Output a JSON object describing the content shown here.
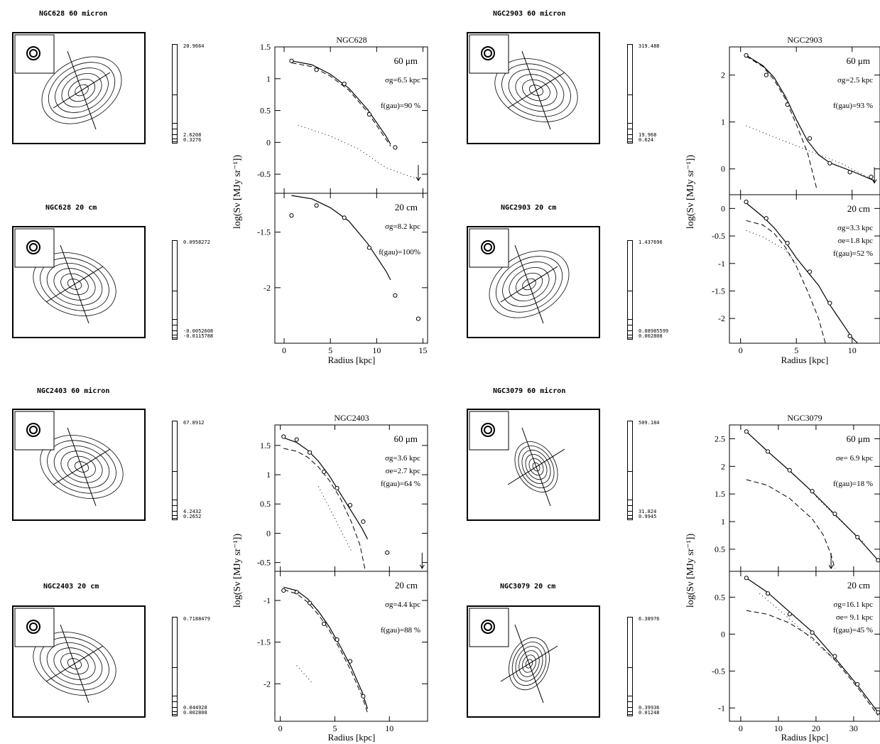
{
  "maps": [
    {
      "id": "ngc628-60",
      "label": "NGC628   60 micron",
      "bar_top": "20.9664",
      "bar_low": [
        "2.6208",
        "0.3276"
      ]
    },
    {
      "id": "ngc628-20",
      "label": "NGC628   20 cm",
      "bar_top": "0.0958272",
      "bar_low": [
        "-0.0052608",
        "-0.0115788"
      ]
    },
    {
      "id": "ngc2903-60",
      "label": "NGC2903   60 micron",
      "bar_top": "319.488",
      "bar_low": [
        "19.968",
        "0.624"
      ]
    },
    {
      "id": "ngc2903-20",
      "label": "NGC2903   20 cm",
      "bar_top": "1.437696",
      "bar_low": [
        "0.08985599",
        "0.002808"
      ]
    },
    {
      "id": "ngc2403-60",
      "label": "NGC2403   60 micron",
      "bar_top": "67.8912",
      "bar_low": [
        "4.2432",
        "0.2652"
      ]
    },
    {
      "id": "ngc2403-20",
      "label": "NGC2403   20 cm",
      "bar_top": "0.7188479",
      "bar_low": [
        "0.044928",
        "0.002808"
      ]
    },
    {
      "id": "ngc3079-60",
      "label": "NGC3079   60 micron",
      "bar_top": "509.184",
      "bar_low": [
        "31.824",
        "0.9945"
      ]
    },
    {
      "id": "ngc3079-20",
      "label": "NGC3079   20 cm",
      "bar_top": "6.38976",
      "bar_low": [
        "0.39936",
        "0.01248"
      ]
    }
  ],
  "chart_data": [
    {
      "type": "line",
      "title": "NGC628",
      "xlabel": "Radius [kpc]",
      "ylabel": "log(Sν [MJy sr⁻¹])",
      "xlim": [
        -1,
        15.5
      ],
      "xticks": [
        0,
        5,
        10,
        15
      ],
      "top": {
        "band": "60 μm",
        "params": [
          "σg=6.5 kpc",
          "f(gau)=90 %"
        ],
        "ylim": [
          -0.8,
          1.5
        ],
        "yticks": [
          -0.5,
          0,
          0.5,
          1,
          1.5
        ],
        "points": [
          [
            0.8,
            1.28
          ],
          [
            3.5,
            1.14
          ],
          [
            6.5,
            0.92
          ],
          [
            9.2,
            0.44
          ],
          [
            12,
            -0.08
          ]
        ],
        "solid": [
          [
            0.8,
            1.28
          ],
          [
            3,
            1.22
          ],
          [
            5,
            1.07
          ],
          [
            7,
            0.85
          ],
          [
            9,
            0.52
          ],
          [
            11,
            0.1
          ],
          [
            11.5,
            -0.03
          ]
        ],
        "dashed": [
          [
            0.8,
            1.25
          ],
          [
            3,
            1.19
          ],
          [
            5,
            1.04
          ],
          [
            7,
            0.82
          ],
          [
            9,
            0.48
          ],
          [
            11,
            0.05
          ],
          [
            11.5,
            -0.06
          ]
        ],
        "dotted": [
          [
            1.5,
            0.27
          ],
          [
            5,
            0.1
          ],
          [
            8,
            -0.1
          ],
          [
            11,
            -0.4
          ],
          [
            14.5,
            -0.58
          ]
        ],
        "arrows": [
          [
            14.5,
            -0.6
          ]
        ]
      },
      "bottom": {
        "band": "20 cm",
        "params": [
          "σg=8.2 kpc",
          "f(gau)=100%"
        ],
        "ylim": [
          -2.5,
          -1.15
        ],
        "yticks": [
          -1.5,
          -2
        ],
        "points": [
          [
            0.8,
            -1.35
          ],
          [
            3.5,
            -1.26
          ],
          [
            6.5,
            -1.37
          ],
          [
            9.2,
            -1.64
          ],
          [
            12,
            -2.07
          ],
          [
            14.5,
            -2.28
          ]
        ],
        "solid": [
          [
            0.8,
            -1.17
          ],
          [
            3,
            -1.2
          ],
          [
            5,
            -1.28
          ],
          [
            7,
            -1.4
          ],
          [
            9,
            -1.6
          ],
          [
            11,
            -1.85
          ],
          [
            11.5,
            -1.93
          ]
        ],
        "dashed": [],
        "dotted": [],
        "arrows": []
      }
    },
    {
      "type": "line",
      "title": "NGC2903",
      "xlabel": "Radius [kpc]",
      "ylabel": "log(Sν [MJy sr⁻¹])",
      "xlim": [
        -1,
        12.5
      ],
      "xticks": [
        0,
        5,
        10
      ],
      "top": {
        "band": "60 μm",
        "params": [
          "σg=2.5 kpc",
          "f(gau)=93 %"
        ],
        "ylim": [
          -0.55,
          2.6
        ],
        "yticks": [
          0,
          1,
          2
        ],
        "points": [
          [
            0.5,
            2.42
          ],
          [
            2.3,
            2.0
          ],
          [
            4.2,
            1.37
          ],
          [
            6.2,
            0.65
          ],
          [
            8,
            0.12
          ],
          [
            9.8,
            -0.07
          ],
          [
            11.7,
            -0.17
          ]
        ],
        "solid": [
          [
            0.5,
            2.42
          ],
          [
            2,
            2.2
          ],
          [
            3,
            1.95
          ],
          [
            4,
            1.55
          ],
          [
            5,
            1.05
          ],
          [
            6,
            0.6
          ],
          [
            7,
            0.3
          ],
          [
            8,
            0.13
          ],
          [
            10,
            -0.05
          ],
          [
            12,
            -0.25
          ]
        ],
        "dashed": [
          [
            0.5,
            2.4
          ],
          [
            2,
            2.18
          ],
          [
            3,
            1.9
          ],
          [
            4,
            1.5
          ],
          [
            5,
            0.95
          ],
          [
            6,
            0.35
          ],
          [
            6.8,
            -0.4
          ]
        ],
        "dotted": [
          [
            0.5,
            0.92
          ],
          [
            3,
            0.68
          ],
          [
            6,
            0.4
          ],
          [
            9,
            0.12
          ],
          [
            12,
            -0.25
          ]
        ],
        "arrows": [
          [
            12,
            -0.3
          ]
        ]
      },
      "bottom": {
        "band": "20 cm",
        "params": [
          "σg=3.3 kpc",
          "σe=1.8 kpc",
          "f(gau)=52 %"
        ],
        "ylim": [
          -2.45,
          0.25
        ],
        "yticks": [
          0,
          -0.5,
          -1,
          -1.5,
          -2
        ],
        "points": [
          [
            0.5,
            0.12
          ],
          [
            2.3,
            -0.18
          ],
          [
            4.2,
            -0.63
          ],
          [
            6.2,
            -1.15
          ],
          [
            8,
            -1.72
          ],
          [
            9.8,
            -2.32
          ]
        ],
        "solid": [
          [
            0.5,
            0.1
          ],
          [
            2,
            -0.15
          ],
          [
            3,
            -0.35
          ],
          [
            4,
            -0.6
          ],
          [
            5,
            -0.9
          ],
          [
            6,
            -1.15
          ],
          [
            7,
            -1.4
          ],
          [
            8,
            -1.75
          ],
          [
            9,
            -2.05
          ],
          [
            10,
            -2.35
          ],
          [
            10.5,
            -2.45
          ]
        ],
        "dashed": [
          [
            0.5,
            -0.22
          ],
          [
            2,
            -0.3
          ],
          [
            3,
            -0.45
          ],
          [
            4,
            -0.7
          ],
          [
            5,
            -1.05
          ],
          [
            6,
            -1.5
          ],
          [
            7,
            -2.0
          ],
          [
            7.6,
            -2.45
          ]
        ],
        "dotted": [
          [
            0.5,
            -0.4
          ],
          [
            2,
            -0.52
          ],
          [
            4,
            -0.75
          ],
          [
            5,
            -1.0
          ]
        ],
        "arrows": []
      }
    },
    {
      "type": "line",
      "title": "NGC2403",
      "xlabel": "Radius [kpc]",
      "ylabel": "log(Sν [MJy sr⁻¹])",
      "xlim": [
        -0.5,
        13.5
      ],
      "xticks": [
        0,
        5,
        10
      ],
      "top": {
        "band": "60 μm",
        "params": [
          "σg=3.6 kpc",
          "σe=2.7 kpc",
          "f(gau)=64 %"
        ],
        "ylim": [
          -0.65,
          1.85
        ],
        "yticks": [
          -0.5,
          0,
          0.5,
          1,
          1.5
        ],
        "points": [
          [
            0.3,
            1.65
          ],
          [
            1.5,
            1.6
          ],
          [
            2.7,
            1.38
          ],
          [
            4,
            1.05
          ],
          [
            5.2,
            0.77
          ],
          [
            6.4,
            0.48
          ],
          [
            7.6,
            0.2
          ],
          [
            9.8,
            -0.33
          ]
        ],
        "solid": [
          [
            0.3,
            1.63
          ],
          [
            1.5,
            1.55
          ],
          [
            2.5,
            1.42
          ],
          [
            3.5,
            1.23
          ],
          [
            4.5,
            0.98
          ],
          [
            5.5,
            0.68
          ],
          [
            6.5,
            0.38
          ],
          [
            7.5,
            0.08
          ],
          [
            8,
            -0.1
          ]
        ],
        "dashed": [
          [
            0.3,
            1.45
          ],
          [
            1.5,
            1.4
          ],
          [
            2.5,
            1.3
          ],
          [
            3.5,
            1.13
          ],
          [
            4.5,
            0.9
          ],
          [
            5.5,
            0.6
          ],
          [
            6.5,
            0.2
          ],
          [
            7.3,
            -0.2
          ],
          [
            7.8,
            -0.65
          ]
        ],
        "dotted": [
          [
            3.5,
            0.8
          ],
          [
            5,
            0.25
          ],
          [
            6.5,
            -0.3
          ]
        ],
        "arrows": [
          [
            13,
            -0.6
          ]
        ]
      },
      "bottom": {
        "band": "20 cm",
        "params": [
          "σg=4.4 kpc",
          "f(gau)=88 %"
        ],
        "ylim": [
          -2.45,
          -0.65
        ],
        "yticks": [
          -1,
          -1.5,
          -2
        ],
        "points": [
          [
            0.3,
            -0.88
          ],
          [
            1.5,
            -0.9
          ],
          [
            2.7,
            -1.03
          ],
          [
            4,
            -1.28
          ],
          [
            5.2,
            -1.47
          ],
          [
            6.4,
            -1.73
          ],
          [
            7.6,
            -2.15
          ]
        ],
        "solid": [
          [
            0.3,
            -0.84
          ],
          [
            1.5,
            -0.88
          ],
          [
            2.5,
            -0.98
          ],
          [
            3.5,
            -1.13
          ],
          [
            4.5,
            -1.32
          ],
          [
            5.5,
            -1.55
          ],
          [
            6.5,
            -1.8
          ],
          [
            7.5,
            -2.1
          ],
          [
            8,
            -2.3
          ]
        ],
        "dashed": [
          [
            0.3,
            -0.87
          ],
          [
            1.5,
            -0.92
          ],
          [
            2.5,
            -1.02
          ],
          [
            3.5,
            -1.17
          ],
          [
            4.5,
            -1.36
          ],
          [
            5.5,
            -1.59
          ],
          [
            6.5,
            -1.85
          ],
          [
            7.5,
            -2.15
          ],
          [
            8,
            -2.35
          ]
        ],
        "dotted": [
          [
            1.5,
            -1.78
          ],
          [
            3,
            -2.0
          ]
        ],
        "arrows": []
      }
    },
    {
      "type": "line",
      "title": "NGC3079",
      "xlabel": "Radius [kpc]",
      "ylabel": "log(Sν [MJy sr⁻¹])",
      "xlim": [
        -3,
        37
      ],
      "xticks": [
        0,
        10,
        20,
        30
      ],
      "top": {
        "band": "60 μm",
        "params": [
          "σe= 6.9 kpc",
          "f(gau)=18 %"
        ],
        "ylim": [
          0.1,
          2.75
        ],
        "yticks": [
          0.5,
          1,
          1.5,
          2,
          2.5
        ],
        "points": [
          [
            1.5,
            2.63
          ],
          [
            7.2,
            2.27
          ],
          [
            13,
            1.93
          ],
          [
            19,
            1.55
          ],
          [
            25,
            1.14
          ],
          [
            31,
            0.72
          ],
          [
            36.5,
            0.3
          ]
        ],
        "solid": [
          [
            1.5,
            2.63
          ],
          [
            7,
            2.28
          ],
          [
            13,
            1.92
          ],
          [
            19,
            1.54
          ],
          [
            25,
            1.13
          ],
          [
            31,
            0.72
          ],
          [
            36.5,
            0.3
          ]
        ],
        "dashed": [
          [
            1.5,
            1.76
          ],
          [
            7,
            1.66
          ],
          [
            13,
            1.42
          ],
          [
            19,
            1.05
          ],
          [
            22,
            0.75
          ],
          [
            24,
            0.4
          ],
          [
            25,
            0.15
          ]
        ],
        "dotted": [
          [
            20,
            1.45
          ],
          [
            26,
            1.05
          ],
          [
            33,
            0.6
          ]
        ],
        "arrows": [
          [
            24,
            0.15
          ]
        ]
      },
      "bottom": {
        "band": "20 cm",
        "params": [
          "σg=16.1 kpc",
          "σe= 9.1 kpc",
          "f(gau)=45 %"
        ],
        "ylim": [
          -1.18,
          0.85
        ],
        "yticks": [
          0.5,
          0,
          -0.5,
          -1
        ],
        "points": [
          [
            1.5,
            0.76
          ],
          [
            7.2,
            0.55
          ],
          [
            13,
            0.27
          ],
          [
            19,
            0.02
          ],
          [
            25,
            -0.3
          ],
          [
            31,
            -0.68
          ],
          [
            36.5,
            -1.06
          ]
        ],
        "solid": [
          [
            1.5,
            0.76
          ],
          [
            7,
            0.57
          ],
          [
            13,
            0.3
          ],
          [
            19,
            0.03
          ],
          [
            25,
            -0.32
          ],
          [
            31,
            -0.69
          ],
          [
            36.5,
            -1.06
          ]
        ],
        "dashed": [
          [
            1.5,
            0.32
          ],
          [
            7,
            0.27
          ],
          [
            13,
            0.15
          ],
          [
            19,
            -0.05
          ],
          [
            25,
            -0.35
          ],
          [
            31,
            -0.72
          ],
          [
            36.5,
            -1.1
          ]
        ],
        "dotted": [
          [
            5,
            0.55
          ],
          [
            12,
            0.25
          ],
          [
            20,
            -0.12
          ],
          [
            28,
            -0.5
          ]
        ],
        "arrows": []
      }
    }
  ]
}
